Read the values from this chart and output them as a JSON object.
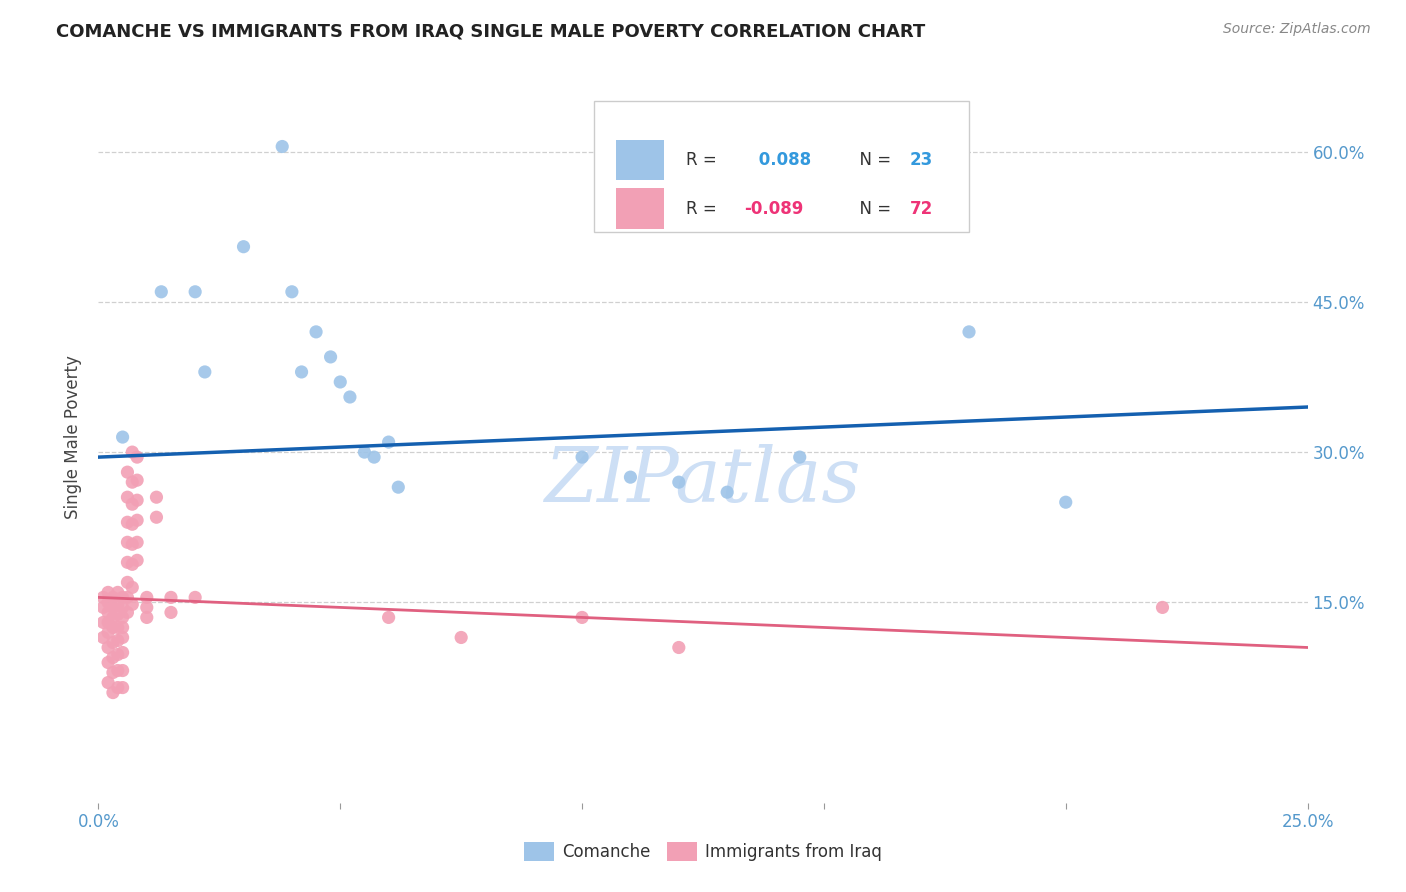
{
  "title": "COMANCHE VS IMMIGRANTS FROM IRAQ SINGLE MALE POVERTY CORRELATION CHART",
  "source": "Source: ZipAtlas.com",
  "ylabel": "Single Male Poverty",
  "ytick_labels": [
    "15.0%",
    "30.0%",
    "45.0%",
    "60.0%"
  ],
  "ytick_values": [
    0.15,
    0.3,
    0.45,
    0.6
  ],
  "xlim": [
    0.0,
    0.25
  ],
  "ylim": [
    -0.05,
    0.68
  ],
  "legend_label1": "Comanche",
  "legend_label2": "Immigrants from Iraq",
  "blue_scatter": [
    [
      0.005,
      0.315
    ],
    [
      0.013,
      0.46
    ],
    [
      0.02,
      0.46
    ],
    [
      0.022,
      0.38
    ],
    [
      0.03,
      0.505
    ],
    [
      0.038,
      0.605
    ],
    [
      0.04,
      0.46
    ],
    [
      0.042,
      0.38
    ],
    [
      0.045,
      0.42
    ],
    [
      0.048,
      0.395
    ],
    [
      0.05,
      0.37
    ],
    [
      0.052,
      0.355
    ],
    [
      0.055,
      0.3
    ],
    [
      0.057,
      0.295
    ],
    [
      0.06,
      0.31
    ],
    [
      0.062,
      0.265
    ],
    [
      0.1,
      0.295
    ],
    [
      0.11,
      0.275
    ],
    [
      0.12,
      0.27
    ],
    [
      0.13,
      0.26
    ],
    [
      0.145,
      0.295
    ],
    [
      0.18,
      0.42
    ],
    [
      0.2,
      0.25
    ]
  ],
  "pink_scatter": [
    [
      0.001,
      0.155
    ],
    [
      0.001,
      0.145
    ],
    [
      0.001,
      0.13
    ],
    [
      0.001,
      0.115
    ],
    [
      0.002,
      0.16
    ],
    [
      0.002,
      0.15
    ],
    [
      0.002,
      0.14
    ],
    [
      0.002,
      0.13
    ],
    [
      0.002,
      0.12
    ],
    [
      0.002,
      0.105
    ],
    [
      0.002,
      0.09
    ],
    [
      0.002,
      0.07
    ],
    [
      0.003,
      0.155
    ],
    [
      0.003,
      0.145
    ],
    [
      0.003,
      0.135
    ],
    [
      0.003,
      0.125
    ],
    [
      0.003,
      0.11
    ],
    [
      0.003,
      0.095
    ],
    [
      0.003,
      0.08
    ],
    [
      0.003,
      0.06
    ],
    [
      0.004,
      0.16
    ],
    [
      0.004,
      0.148
    ],
    [
      0.004,
      0.138
    ],
    [
      0.004,
      0.125
    ],
    [
      0.004,
      0.112
    ],
    [
      0.004,
      0.098
    ],
    [
      0.004,
      0.082
    ],
    [
      0.004,
      0.065
    ],
    [
      0.005,
      0.155
    ],
    [
      0.005,
      0.145
    ],
    [
      0.005,
      0.135
    ],
    [
      0.005,
      0.125
    ],
    [
      0.005,
      0.115
    ],
    [
      0.005,
      0.1
    ],
    [
      0.005,
      0.082
    ],
    [
      0.005,
      0.065
    ],
    [
      0.006,
      0.28
    ],
    [
      0.006,
      0.255
    ],
    [
      0.006,
      0.23
    ],
    [
      0.006,
      0.21
    ],
    [
      0.006,
      0.19
    ],
    [
      0.006,
      0.17
    ],
    [
      0.006,
      0.155
    ],
    [
      0.006,
      0.14
    ],
    [
      0.007,
      0.3
    ],
    [
      0.007,
      0.27
    ],
    [
      0.007,
      0.248
    ],
    [
      0.007,
      0.228
    ],
    [
      0.007,
      0.208
    ],
    [
      0.007,
      0.188
    ],
    [
      0.007,
      0.165
    ],
    [
      0.007,
      0.148
    ],
    [
      0.008,
      0.295
    ],
    [
      0.008,
      0.272
    ],
    [
      0.008,
      0.252
    ],
    [
      0.008,
      0.232
    ],
    [
      0.008,
      0.21
    ],
    [
      0.008,
      0.192
    ],
    [
      0.01,
      0.155
    ],
    [
      0.01,
      0.145
    ],
    [
      0.01,
      0.135
    ],
    [
      0.012,
      0.255
    ],
    [
      0.012,
      0.235
    ],
    [
      0.015,
      0.155
    ],
    [
      0.015,
      0.14
    ],
    [
      0.02,
      0.155
    ],
    [
      0.06,
      0.135
    ],
    [
      0.075,
      0.115
    ],
    [
      0.1,
      0.135
    ],
    [
      0.12,
      0.105
    ],
    [
      0.22,
      0.145
    ]
  ],
  "blue_line_color": "#1460b0",
  "pink_line_color": "#e06080",
  "scatter_blue_color": "#9ec4e8",
  "scatter_pink_color": "#f2a0b5",
  "background_color": "#ffffff",
  "watermark": "ZIPatlas",
  "watermark_color": "#cddff5",
  "grid_color": "#d0d0d0",
  "title_color": "#222222",
  "source_color": "#888888",
  "tick_color": "#5599cc",
  "label_color": "#444444"
}
